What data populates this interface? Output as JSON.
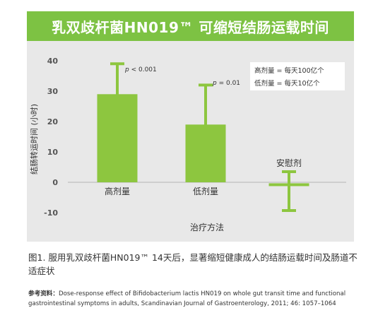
{
  "title": "乳双歧杆菌HN019™ 可缩短结肠运载时间",
  "chart_data": {
    "type": "bar",
    "categories": [
      "高剂量",
      "低剂量",
      "安慰剂"
    ],
    "values": [
      29,
      19,
      -0.8
    ],
    "error_bars": [
      {
        "low": 0,
        "high": 39
      },
      {
        "low": 0,
        "high": 32
      },
      {
        "low": -9.3,
        "high": 3.5
      }
    ],
    "annotations": [
      {
        "category": "高剂量",
        "p_label": "p",
        "p_value": "< 0.001"
      },
      {
        "category": "低剂量",
        "p_label": "p",
        "p_value": "= 0.01"
      }
    ],
    "xlabel": "治疗方法",
    "ylabel": "结肠转运时间 (小时)",
    "ylim": [
      -12,
      42
    ],
    "yticks": [
      -10,
      0,
      10,
      20,
      30,
      40
    ],
    "legend": {
      "placement": "top-right",
      "lines": [
        "高剂量 = 每天100亿个",
        "低剂量 = 每天10亿个"
      ]
    },
    "colors": {
      "bar": "#8dc63f",
      "background": "#e8e8e8",
      "title_bar": "#7dc243"
    }
  },
  "caption": "图1. 服用乳双歧杆菌HN019™ 14天后，显著缩短健康成人的结肠运载时间及肠道不适症状",
  "reference": {
    "label": "参考资料：",
    "text": "Dose-response effect of Bifidobacterium lactis HN019 on whole gut transit time and functional gastrointestinal symptoms in adults, Scandinavian Journal of Gastroenterology, 2011; 46: 1057–1064"
  }
}
